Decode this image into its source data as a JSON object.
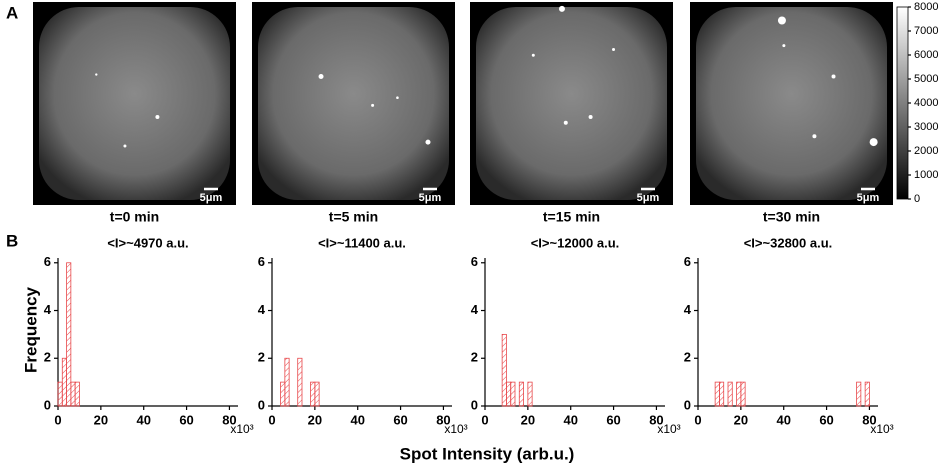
{
  "panel_labels": [
    "A",
    "B"
  ],
  "images": [
    {
      "label": "t=0 min",
      "scale_bar": "5μm"
    },
    {
      "label": "t=5 min",
      "scale_bar": "5μm"
    },
    {
      "label": "t=15 min",
      "scale_bar": "5μm"
    },
    {
      "label": "t=30 min",
      "scale_bar": "5μm"
    }
  ],
  "colorbar": {
    "lim": [
      0,
      8000
    ],
    "ticks": [
      0,
      1000,
      2000,
      3000,
      4000,
      5000,
      6000,
      7000,
      8000
    ]
  },
  "y_label": "Frequency",
  "x_label": "Spot Intensity (arb.u.)",
  "chart_data": [
    {
      "type": "histogram",
      "title": "<I>~4970 a.u.",
      "color": "#e8474a",
      "bins": [
        0,
        2,
        4,
        6,
        8,
        10
      ],
      "values": [
        1,
        2,
        6,
        1,
        1
      ],
      "xlim": [
        0,
        84
      ],
      "xticks": [
        0,
        20,
        40,
        60,
        80
      ],
      "x_multiplier": "x10³",
      "ylim": [
        0,
        6.2
      ],
      "yticks": [
        0,
        2,
        4,
        6
      ]
    },
    {
      "type": "histogram",
      "title": "<I>~11400 a.u.",
      "color": "#e8474a",
      "bins": [
        4,
        6,
        8,
        10,
        12,
        14,
        16,
        18,
        20,
        22
      ],
      "values": [
        1,
        2,
        0,
        0,
        2,
        0,
        0,
        1,
        1
      ],
      "xlim": [
        0,
        84
      ],
      "xticks": [
        0,
        20,
        40,
        60,
        80
      ],
      "x_multiplier": "x10³",
      "ylim": [
        0,
        6.2
      ],
      "yticks": [
        0,
        2,
        4,
        6
      ]
    },
    {
      "type": "histogram",
      "title": "<I>~12000 a.u.",
      "color": "#e8474a",
      "bins": [
        8,
        10,
        12,
        14,
        16,
        18,
        20,
        22
      ],
      "values": [
        3,
        1,
        1,
        0,
        1,
        0,
        1
      ],
      "xlim": [
        0,
        84
      ],
      "xticks": [
        0,
        20,
        40,
        60,
        80
      ],
      "x_multiplier": "x10³",
      "ylim": [
        0,
        6.2
      ],
      "yticks": [
        0,
        2,
        4,
        6
      ]
    },
    {
      "type": "histogram",
      "title": "<I>~32800 a.u.",
      "color": "#e8474a",
      "bins": [
        8,
        10,
        12,
        14,
        16,
        18,
        20,
        22,
        24,
        26,
        28,
        30,
        32,
        34,
        36,
        38,
        40,
        42,
        44,
        46,
        48,
        50,
        52,
        54,
        56,
        58,
        60,
        62,
        64,
        66,
        68,
        70,
        72,
        74,
        76,
        78,
        80
      ],
      "values": [
        1,
        1,
        0,
        1,
        0,
        1,
        1,
        0,
        0,
        0,
        0,
        0,
        0,
        0,
        0,
        0,
        0,
        0,
        0,
        0,
        0,
        0,
        0,
        0,
        0,
        0,
        0,
        0,
        0,
        0,
        0,
        0,
        0,
        1,
        0,
        1
      ],
      "xlim": [
        0,
        84
      ],
      "xticks": [
        0,
        20,
        40,
        60,
        80
      ],
      "x_multiplier": "x10³",
      "ylim": [
        0,
        6.2
      ],
      "yticks": [
        0,
        2,
        4,
        6
      ]
    }
  ]
}
